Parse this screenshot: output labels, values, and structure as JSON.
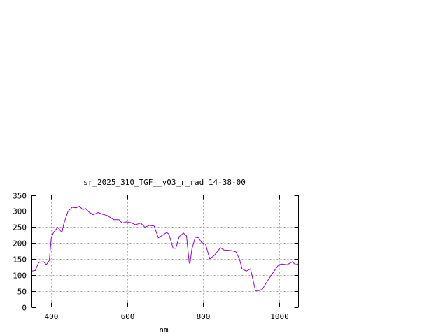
{
  "chart_data": {
    "type": "line",
    "title": "sr_2025_310_TGF__y03_r_rad 14-38-00",
    "xlabel": "nm",
    "ylabel": "",
    "xlim": [
      350,
      1050
    ],
    "ylim": [
      0,
      350
    ],
    "xticks": [
      400,
      600,
      800,
      1000
    ],
    "yticks": [
      0,
      50,
      100,
      150,
      200,
      250,
      300,
      350
    ],
    "grid": true,
    "legend": "none",
    "line_color": "#9400d3",
    "series": [
      {
        "x": [
          350,
          359,
          368,
          381,
          388,
          396,
          401,
          407,
          418,
          429,
          434,
          445,
          456,
          466,
          475,
          484,
          491,
          500,
          511,
          524,
          535,
          548,
          565,
          579,
          587,
          598,
          609,
          622,
          636,
          647,
          658,
          671,
          682,
          693,
          704,
          710,
          721,
          728,
          737,
          748,
          756,
          763,
          765,
          770,
          779,
          788,
          795,
          806,
          817,
          829,
          845,
          854,
          873,
          886,
          895,
          902,
          913,
          924,
          937,
          946,
          955,
          970,
          986,
          998,
          1007,
          1020,
          1034,
          1042,
          1049
        ],
        "y": [
          112,
          114,
          139,
          141,
          132,
          145,
          216,
          233,
          249,
          233,
          260,
          299,
          312,
          310,
          315,
          304,
          308,
          297,
          288,
          295,
          290,
          286,
          273,
          273,
          262,
          266,
          264,
          257,
          262,
          249,
          255,
          253,
          216,
          224,
          233,
          227,
          183,
          183,
          220,
          231,
          222,
          139,
          134,
          180,
          218,
          216,
          202,
          196,
          150,
          161,
          185,
          178,
          176,
          172,
          150,
          119,
          112,
          119,
          51,
          51,
          55,
          84,
          112,
          132,
          134,
          132,
          141,
          132,
          134
        ]
      }
    ]
  }
}
